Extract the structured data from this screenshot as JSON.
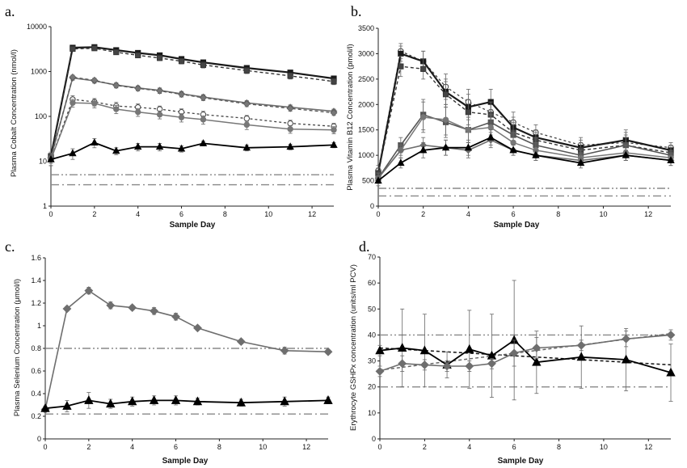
{
  "chart_data": [
    {
      "panel": "a.",
      "type": "line",
      "ylabel": "Plasma Cobalt Concentration (nmol/l)",
      "xlabel": "Sample Day",
      "yscale": "log",
      "ylim": [
        1,
        10000
      ],
      "xlim": [
        0,
        13
      ],
      "yticks": [
        "1",
        "10",
        "100",
        "1000",
        "10000"
      ],
      "xticks": [
        "0",
        "2",
        "4",
        "6",
        "8",
        "10",
        "12"
      ],
      "x": [
        0,
        1,
        2,
        3,
        4,
        5,
        6,
        7,
        9,
        11,
        13
      ],
      "reference_lines": [
        5,
        3
      ],
      "series": [
        {
          "style": "solid-square-dark",
          "values": [
            13,
            3400,
            3500,
            3000,
            2600,
            2300,
            1900,
            1600,
            1200,
            950,
            700
          ],
          "errors": [
            3,
            250,
            250,
            280,
            280,
            250,
            220,
            200,
            150,
            120,
            100
          ]
        },
        {
          "style": "dashed-square",
          "values": [
            12,
            3200,
            3300,
            2700,
            2300,
            2000,
            1700,
            1400,
            1050,
            800,
            600
          ],
          "errors": [
            3,
            300,
            300,
            300,
            280,
            250,
            220,
            200,
            150,
            120,
            90
          ]
        },
        {
          "style": "solid-diamond-gray",
          "values": [
            12,
            720,
            620,
            500,
            430,
            380,
            320,
            270,
            200,
            160,
            130
          ],
          "errors": [
            3,
            80,
            70,
            60,
            50,
            50,
            40,
            35,
            25,
            20,
            15
          ]
        },
        {
          "style": "dashed-diamond",
          "values": [
            12,
            750,
            640,
            490,
            420,
            370,
            310,
            260,
            190,
            150,
            120
          ],
          "errors": [
            3,
            80,
            70,
            60,
            50,
            45,
            40,
            35,
            25,
            20,
            15
          ]
        },
        {
          "style": "dashed-circle-open",
          "values": [
            11,
            240,
            210,
            170,
            160,
            145,
            125,
            110,
            90,
            70,
            60
          ],
          "errors": [
            3,
            50,
            40,
            35,
            30,
            25,
            22,
            20,
            15,
            12,
            10
          ]
        },
        {
          "style": "solid-circle-gray",
          "values": [
            11,
            200,
            195,
            145,
            125,
            110,
            95,
            85,
            65,
            52,
            50
          ],
          "errors": [
            3,
            40,
            40,
            30,
            25,
            22,
            20,
            18,
            14,
            10,
            9
          ]
        },
        {
          "style": "solid-triangle-black",
          "values": [
            11,
            15,
            26,
            17,
            21,
            21,
            19,
            25,
            20,
            21,
            23
          ],
          "errors": [
            3,
            4,
            6,
            3,
            4,
            4,
            3,
            3,
            3,
            3,
            3
          ]
        }
      ]
    },
    {
      "panel": "b.",
      "type": "line",
      "ylabel": "Plasma Vitamin B12 Concentration (pmol/l)",
      "xlabel": "Sample Day",
      "ylim": [
        0,
        3500
      ],
      "xlim": [
        0,
        13
      ],
      "yticks": [
        "0",
        "500",
        "1000",
        "1500",
        "2000",
        "2500",
        "3000",
        "3500"
      ],
      "xticks": [
        "0",
        "2",
        "4",
        "6",
        "8",
        "10",
        "12"
      ],
      "x": [
        0,
        1,
        2,
        3,
        4,
        5,
        6,
        7,
        9,
        11,
        13
      ],
      "reference_lines": [
        350,
        200
      ],
      "series": [
        {
          "style": "dashed-circle-open",
          "values": [
            700,
            3050,
            2850,
            2350,
            2050,
            1850,
            1650,
            1450,
            1200,
            1250,
            1150
          ],
          "errors": [
            100,
            150,
            200,
            250,
            250,
            250,
            200,
            150,
            150,
            200,
            100
          ]
        },
        {
          "style": "solid-square-dark",
          "values": [
            650,
            3000,
            2850,
            2250,
            1950,
            2050,
            1550,
            1350,
            1150,
            1300,
            1100
          ],
          "errors": [
            100,
            150,
            200,
            250,
            250,
            250,
            200,
            150,
            150,
            200,
            100
          ]
        },
        {
          "style": "dashed-square",
          "values": [
            650,
            2750,
            2700,
            2200,
            1850,
            1800,
            1450,
            1300,
            1100,
            1200,
            1050
          ],
          "errors": [
            100,
            200,
            200,
            250,
            250,
            250,
            200,
            150,
            150,
            200,
            100
          ]
        },
        {
          "style": "solid-square-gray",
          "values": [
            550,
            1200,
            1800,
            1650,
            1500,
            1650,
            1400,
            1200,
            1000,
            1200,
            1000
          ],
          "errors": [
            100,
            150,
            300,
            300,
            250,
            250,
            200,
            150,
            100,
            150,
            100
          ]
        },
        {
          "style": "solid-circle-gray",
          "values": [
            550,
            1100,
            1750,
            1700,
            1500,
            1550,
            1250,
            1100,
            950,
            1050,
            950
          ],
          "errors": [
            100,
            150,
            300,
            300,
            250,
            250,
            200,
            150,
            100,
            150,
            100
          ]
        },
        {
          "style": "solid-diamond-gray",
          "values": [
            550,
            1100,
            1200,
            1150,
            1100,
            1300,
            1100,
            1000,
            900,
            1000,
            900
          ],
          "errors": [
            100,
            100,
            150,
            150,
            150,
            150,
            100,
            100,
            100,
            100,
            100
          ]
        },
        {
          "style": "solid-triangle-black",
          "values": [
            500,
            850,
            1100,
            1150,
            1150,
            1350,
            1100,
            1000,
            850,
            1000,
            900
          ],
          "errors": [
            100,
            100,
            150,
            150,
            150,
            150,
            100,
            100,
            100,
            100,
            100
          ]
        }
      ]
    },
    {
      "panel": "c.",
      "type": "line",
      "ylabel": "Plasma Selenium Concentration (μmol/l)",
      "xlabel": "Sample Day",
      "ylim": [
        0,
        1.6
      ],
      "xlim": [
        0,
        13
      ],
      "yticks": [
        "0",
        "0.2",
        "0.4",
        "0.6",
        "0.8",
        "1",
        "1.2",
        "1.4",
        "1.6"
      ],
      "xticks": [
        "0",
        "2",
        "4",
        "6",
        "8",
        "10",
        "12"
      ],
      "x": [
        0,
        1,
        2,
        3,
        4,
        5,
        6,
        7,
        9,
        11,
        13
      ],
      "reference_lines": [
        0.8,
        0.22
      ],
      "series": [
        {
          "style": "solid-diamond-gray",
          "values": [
            0.26,
            1.15,
            1.31,
            1.18,
            1.16,
            1.13,
            1.08,
            0.98,
            0.86,
            0.78,
            0.77
          ],
          "errors": [
            0.02,
            0.02,
            0.03,
            0.03,
            0.02,
            0.03,
            0.03,
            0.02,
            0.02,
            0.03,
            0.02
          ]
        },
        {
          "style": "solid-triangle-black",
          "values": [
            0.27,
            0.29,
            0.34,
            0.31,
            0.33,
            0.34,
            0.34,
            0.33,
            0.32,
            0.33,
            0.34
          ],
          "errors": [
            0.02,
            0.05,
            0.07,
            0.04,
            0.04,
            0.04,
            0.04,
            0.03,
            0.03,
            0.04,
            0.03
          ]
        }
      ]
    },
    {
      "panel": "d.",
      "type": "line",
      "ylabel": "Erythrocyte GSHPx concentration (units/ml PCV)",
      "xlabel": "Sample Day",
      "ylim": [
        0,
        70
      ],
      "xlim": [
        0,
        13
      ],
      "yticks": [
        "0",
        "10",
        "20",
        "30",
        "40",
        "50",
        "60",
        "70"
      ],
      "xticks": [
        "0",
        "2",
        "4",
        "6",
        "8",
        "10",
        "12"
      ],
      "x": [
        0,
        1,
        2,
        3,
        4,
        5,
        6,
        7,
        9,
        11,
        13
      ],
      "reference_lines": [
        40,
        20
      ],
      "series": [
        {
          "style": "solid-triangle-black",
          "values": [
            34,
            35,
            34,
            28.5,
            34.5,
            32,
            38,
            29.5,
            31.5,
            30.5,
            25.5
          ],
          "errors": [
            2,
            15,
            14,
            5,
            15,
            16,
            23,
            12,
            12,
            12,
            11
          ]
        },
        {
          "style": "solid-diamond-gray",
          "values": [
            26,
            29,
            28.5,
            28,
            28,
            29,
            33,
            35,
            36,
            38.5,
            40
          ],
          "errors": [
            2,
            3,
            2,
            2,
            2,
            2,
            5,
            4,
            2,
            3,
            2
          ]
        }
      ],
      "trendlines": [
        {
          "style": "dashed-black",
          "from": [
            0,
            35
          ],
          "to": [
            13,
            28.5
          ]
        },
        {
          "style": "dashed-gray",
          "from": [
            0,
            26.5
          ],
          "to": [
            13,
            40.5
          ]
        }
      ]
    }
  ]
}
